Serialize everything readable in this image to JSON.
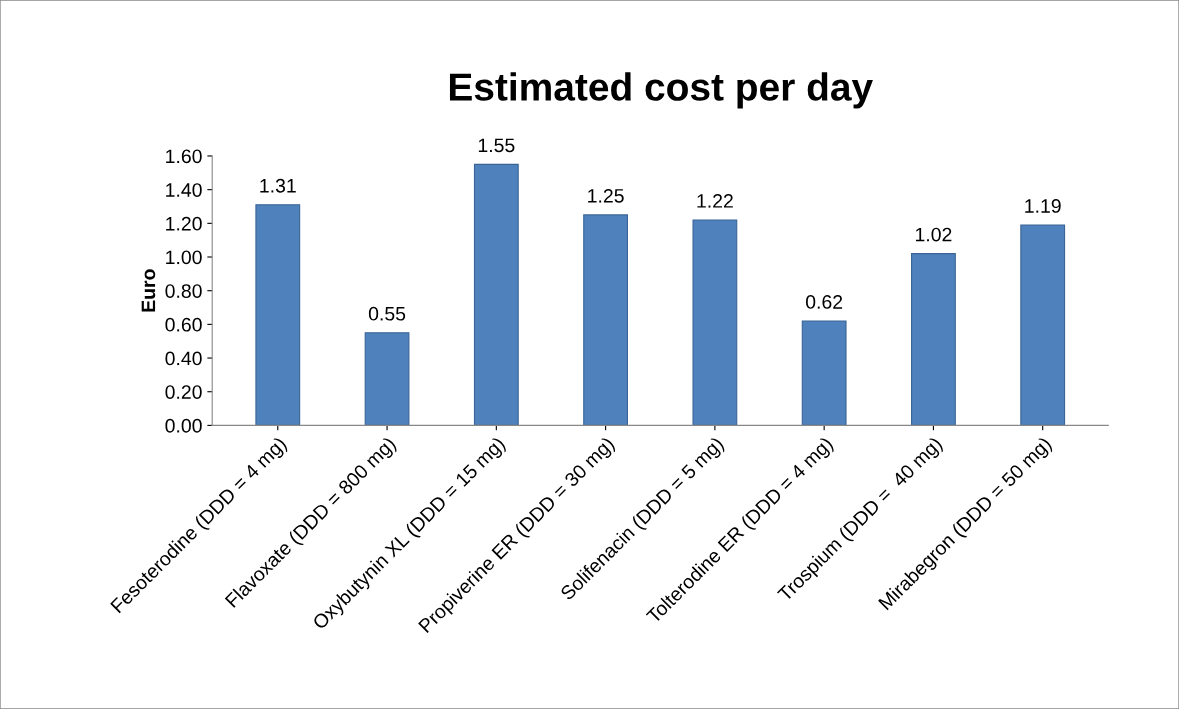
{
  "chart_data": {
    "type": "bar",
    "title": "Estimated cost per day",
    "ylabel": "Euro",
    "categories": [
      "Fesoterodine (DDD = 4 mg)",
      "Flavoxate (DDD = 800 mg)",
      "Oxybutynin XL (DDD = 15 mg)",
      "Propiverine ER (DDD = 30 mg)",
      "Solifenacin (DDD = 5 mg)",
      "Tolterodine ER (DDD = 4 mg)",
      "Trospium (DDD =  40 mg)",
      "Mirabegron (DDD = 50 mg)"
    ],
    "values": [
      1.31,
      0.55,
      1.55,
      1.25,
      1.22,
      0.62,
      1.02,
      1.19
    ],
    "color": "#4f81bd",
    "data_labels": true,
    "grid": false,
    "legend": false,
    "ylim": [
      0,
      1.6
    ],
    "yticks": [
      {
        "value": 0,
        "label": "0.00"
      },
      {
        "value": 0.2,
        "label": "0.20"
      },
      {
        "value": 0.4,
        "label": "0.40"
      },
      {
        "value": 0.6,
        "label": "0.60"
      },
      {
        "value": 0.8,
        "label": "0.80"
      },
      {
        "value": 1.0,
        "label": "1.00"
      },
      {
        "value": 1.2,
        "label": "1.20"
      },
      {
        "value": 1.4,
        "label": "1.40"
      },
      {
        "value": 1.6,
        "label": "1.60"
      }
    ]
  }
}
